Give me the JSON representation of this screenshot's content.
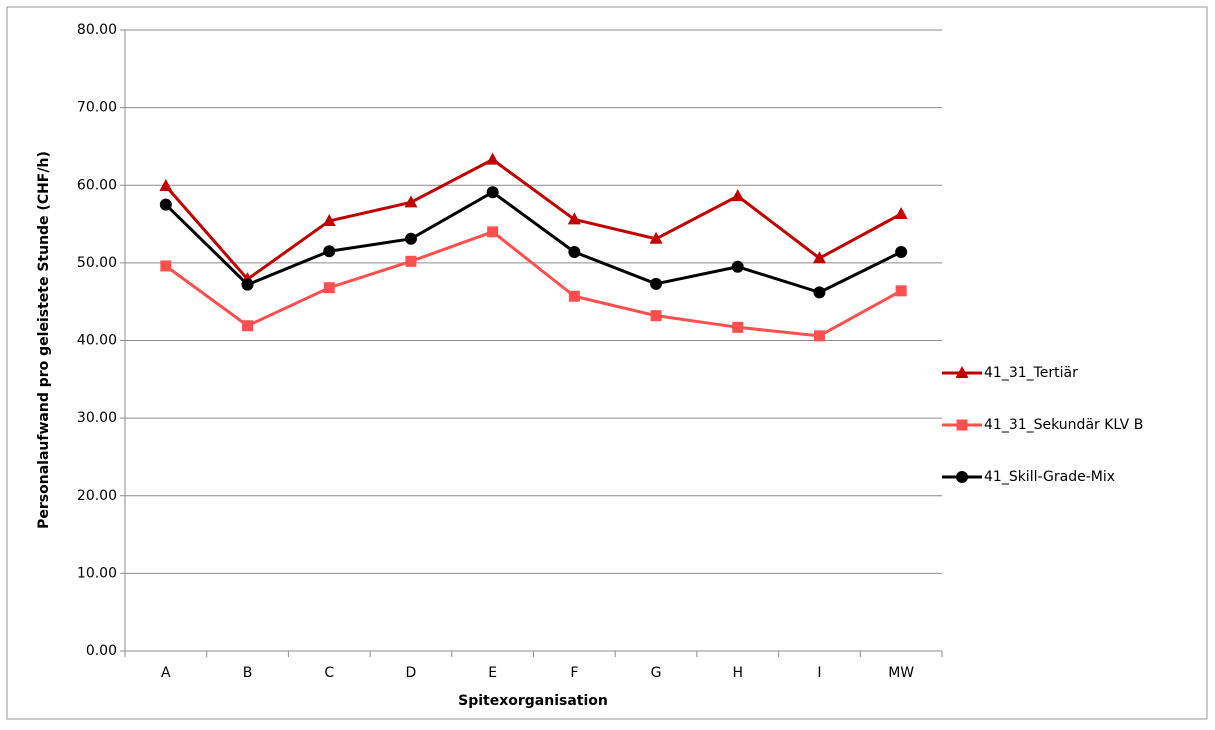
{
  "chart_data": {
    "type": "line",
    "y_label": "Personalaufwand pro geleistete Stunde (CHF/h)",
    "x_label": "Spitexorganisation",
    "categories": [
      "A",
      "B",
      "C",
      "D",
      "E",
      "F",
      "G",
      "H",
      "I",
      "MW"
    ],
    "series": [
      {
        "name": "41_31_Tertiär",
        "color": "#c00000",
        "marker": "triangle",
        "values": [
          59.9,
          47.9,
          55.4,
          57.8,
          63.3,
          55.6,
          53.1,
          58.6,
          50.6,
          56.3
        ]
      },
      {
        "name": "41_31_Sekundär KLV B",
        "color": "#ff5050",
        "marker": "square",
        "values": [
          49.6,
          41.9,
          46.8,
          50.2,
          54.0,
          45.7,
          43.2,
          41.7,
          40.6,
          46.4
        ]
      },
      {
        "name": "41_Skill-Grade-Mix",
        "color": "#000000",
        "marker": "circle",
        "values": [
          57.5,
          47.2,
          51.5,
          53.1,
          59.1,
          51.4,
          47.3,
          49.5,
          46.2,
          51.4
        ]
      }
    ],
    "ylim": [
      0,
      80
    ],
    "yticks": [
      {
        "value": 0,
        "label": "0.00"
      },
      {
        "value": 10,
        "label": "10.00"
      },
      {
        "value": 20,
        "label": "20.00"
      },
      {
        "value": 30,
        "label": "30.00"
      },
      {
        "value": 40,
        "label": "40.00"
      },
      {
        "value": 50,
        "label": "50.00"
      },
      {
        "value": 60,
        "label": "60.00"
      },
      {
        "value": 70,
        "label": "70.00"
      },
      {
        "value": 80,
        "label": "80.00"
      }
    ],
    "grid": true,
    "legend": "right"
  }
}
